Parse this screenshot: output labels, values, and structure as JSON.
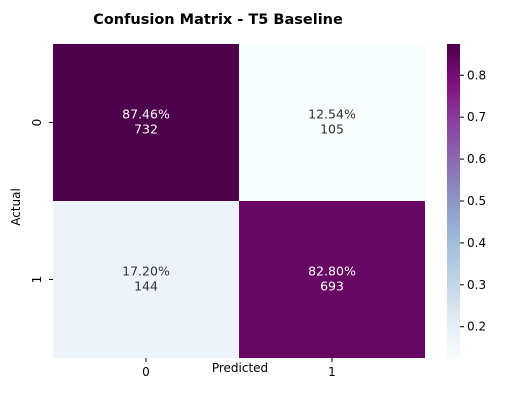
{
  "chart_data": {
    "type": "heatmap",
    "title": "Confusion Matrix - T5 Baseline",
    "xlabel": "Predicted",
    "ylabel": "Actual",
    "x_categories": [
      "0",
      "1"
    ],
    "y_categories": [
      "0",
      "1"
    ],
    "values": [
      [
        0.8746,
        0.1254
      ],
      [
        0.172,
        0.828
      ]
    ],
    "cell_labels": [
      [
        {
          "percent": "87.46%",
          "count": "732"
        },
        {
          "percent": "12.54%",
          "count": "105"
        }
      ],
      [
        {
          "percent": "17.20%",
          "count": "144"
        },
        {
          "percent": "82.80%",
          "count": "693"
        }
      ]
    ],
    "colorbar": {
      "min": 0.1254,
      "max": 0.8746,
      "ticks": [
        "0.2",
        "0.3",
        "0.4",
        "0.5",
        "0.6",
        "0.7",
        "0.8"
      ],
      "colormap": "BuPu"
    },
    "colors": {
      "background": "#ffffff",
      "text_dark_cell": "#ffffff",
      "text_light_cell": "#333333"
    }
  }
}
